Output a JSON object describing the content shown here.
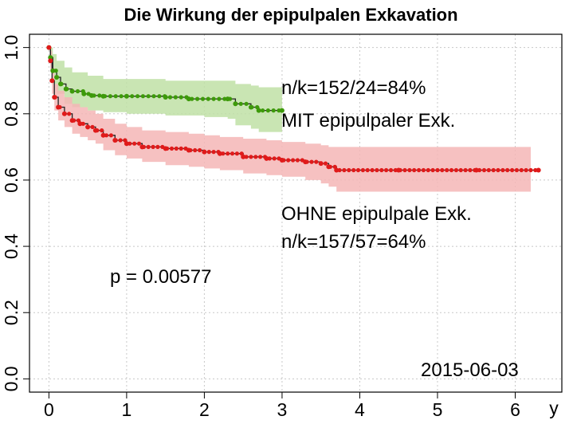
{
  "chart_data": {
    "type": "line",
    "title": "Die Wirkung der epipulpalen Exkavation",
    "xlabel": "y",
    "ylabel": "",
    "xlim": [
      -0.25,
      6.6
    ],
    "ylim": [
      -0.04,
      1.04
    ],
    "grid": true,
    "x_ticks": [
      "0",
      "1",
      "2",
      "3",
      "4",
      "5",
      "6"
    ],
    "y_ticks": [
      "0.0",
      "0.2",
      "0.4",
      "0.6",
      "0.8",
      "1.0"
    ],
    "series": [
      {
        "name": "MIT epipulpaler Exk.",
        "color": "#3d9a0a",
        "band_color": "#bfe0a6",
        "points": [
          [
            0,
            1.0
          ],
          [
            0.02,
            0.97
          ],
          [
            0.05,
            0.93
          ],
          [
            0.1,
            0.91
          ],
          [
            0.15,
            0.89
          ],
          [
            0.22,
            0.875
          ],
          [
            0.3,
            0.868
          ],
          [
            0.45,
            0.86
          ],
          [
            0.55,
            0.855
          ],
          [
            0.7,
            0.853
          ],
          [
            1.0,
            0.853
          ],
          [
            1.5,
            0.85
          ],
          [
            1.8,
            0.845
          ],
          [
            2.3,
            0.845
          ],
          [
            2.4,
            0.83
          ],
          [
            2.6,
            0.82
          ],
          [
            2.7,
            0.81
          ],
          [
            3.0,
            0.81
          ]
        ],
        "lower": [
          [
            0,
            1.0
          ],
          [
            0.02,
            0.94
          ],
          [
            0.05,
            0.89
          ],
          [
            0.1,
            0.86
          ],
          [
            0.2,
            0.83
          ],
          [
            0.3,
            0.82
          ],
          [
            0.5,
            0.81
          ],
          [
            0.7,
            0.805
          ],
          [
            1.0,
            0.8
          ],
          [
            1.5,
            0.795
          ],
          [
            2.0,
            0.79
          ],
          [
            2.3,
            0.785
          ],
          [
            2.4,
            0.765
          ],
          [
            2.6,
            0.755
          ],
          [
            2.7,
            0.745
          ],
          [
            3.0,
            0.745
          ]
        ],
        "upper": [
          [
            0,
            1.0
          ],
          [
            0.02,
            1.0
          ],
          [
            0.05,
            0.98
          ],
          [
            0.1,
            0.96
          ],
          [
            0.2,
            0.94
          ],
          [
            0.3,
            0.925
          ],
          [
            0.5,
            0.915
          ],
          [
            0.7,
            0.905
          ],
          [
            1.0,
            0.905
          ],
          [
            1.5,
            0.9
          ],
          [
            2.0,
            0.9
          ],
          [
            2.3,
            0.9
          ],
          [
            2.4,
            0.89
          ],
          [
            2.6,
            0.885
          ],
          [
            2.7,
            0.88
          ],
          [
            3.0,
            0.88
          ]
        ],
        "label": "MIT epipulpaler Exk.",
        "stats": "n/k=152/24=84%"
      },
      {
        "name": "OHNE epipulpale Exk.",
        "color": "#e01a1a",
        "band_color": "#f4b6b6",
        "points": [
          [
            0,
            1.0
          ],
          [
            0.02,
            0.96
          ],
          [
            0.04,
            0.9
          ],
          [
            0.07,
            0.85
          ],
          [
            0.12,
            0.82
          ],
          [
            0.2,
            0.8
          ],
          [
            0.3,
            0.78
          ],
          [
            0.4,
            0.77
          ],
          [
            0.5,
            0.76
          ],
          [
            0.6,
            0.75
          ],
          [
            0.7,
            0.735
          ],
          [
            0.85,
            0.72
          ],
          [
            1.0,
            0.71
          ],
          [
            1.2,
            0.7
          ],
          [
            1.5,
            0.695
          ],
          [
            1.8,
            0.69
          ],
          [
            2.0,
            0.685
          ],
          [
            2.2,
            0.68
          ],
          [
            2.5,
            0.67
          ],
          [
            2.8,
            0.665
          ],
          [
            3.0,
            0.66
          ],
          [
            3.3,
            0.655
          ],
          [
            3.5,
            0.65
          ],
          [
            3.6,
            0.64
          ],
          [
            3.7,
            0.63
          ],
          [
            4.5,
            0.63
          ],
          [
            5.5,
            0.63
          ],
          [
            6.3,
            0.63
          ]
        ],
        "lower": [
          [
            0,
            1.0
          ],
          [
            0.02,
            0.93
          ],
          [
            0.04,
            0.86
          ],
          [
            0.07,
            0.81
          ],
          [
            0.12,
            0.78
          ],
          [
            0.2,
            0.76
          ],
          [
            0.3,
            0.74
          ],
          [
            0.4,
            0.73
          ],
          [
            0.5,
            0.72
          ],
          [
            0.6,
            0.71
          ],
          [
            0.7,
            0.69
          ],
          [
            0.85,
            0.675
          ],
          [
            1.0,
            0.665
          ],
          [
            1.2,
            0.655
          ],
          [
            1.5,
            0.645
          ],
          [
            1.8,
            0.64
          ],
          [
            2.0,
            0.635
          ],
          [
            2.2,
            0.63
          ],
          [
            2.5,
            0.62
          ],
          [
            2.8,
            0.615
          ],
          [
            3.0,
            0.61
          ],
          [
            3.3,
            0.6
          ],
          [
            3.5,
            0.59
          ],
          [
            3.6,
            0.58
          ],
          [
            3.7,
            0.565
          ],
          [
            4.5,
            0.565
          ],
          [
            5.5,
            0.565
          ],
          [
            6.2,
            0.565
          ]
        ],
        "upper": [
          [
            0,
            1.0
          ],
          [
            0.02,
            0.99
          ],
          [
            0.04,
            0.94
          ],
          [
            0.07,
            0.89
          ],
          [
            0.12,
            0.87
          ],
          [
            0.2,
            0.85
          ],
          [
            0.3,
            0.83
          ],
          [
            0.4,
            0.82
          ],
          [
            0.5,
            0.81
          ],
          [
            0.6,
            0.8
          ],
          [
            0.7,
            0.785
          ],
          [
            0.85,
            0.77
          ],
          [
            1.0,
            0.76
          ],
          [
            1.2,
            0.75
          ],
          [
            1.5,
            0.745
          ],
          [
            1.8,
            0.74
          ],
          [
            2.0,
            0.735
          ],
          [
            2.2,
            0.73
          ],
          [
            2.5,
            0.725
          ],
          [
            2.8,
            0.72
          ],
          [
            3.0,
            0.715
          ],
          [
            3.3,
            0.71
          ],
          [
            3.5,
            0.705
          ],
          [
            3.6,
            0.7
          ],
          [
            3.7,
            0.7
          ],
          [
            4.5,
            0.7
          ],
          [
            5.5,
            0.7
          ],
          [
            6.2,
            0.7
          ]
        ],
        "label": "OHNE epipulpale Exk.",
        "stats": "n/k=157/57=64%"
      }
    ],
    "annotations": {
      "p_value": "p = 0.00577",
      "date": "2015-06-03"
    }
  }
}
